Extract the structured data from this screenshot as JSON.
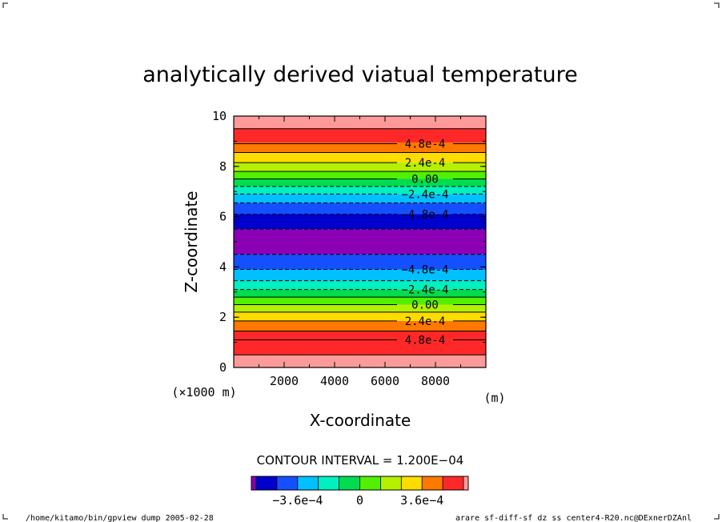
{
  "chart_data": {
    "type": "contour",
    "title": "analytically derived viatual temperature",
    "xlabel": "X-coordinate",
    "ylabel": "Z-coordinate",
    "x_unit": "(m)",
    "y_scale_note": "(×1000 m)",
    "xlim": [
      0,
      10000
    ],
    "ylim": [
      0,
      10
    ],
    "x_ticks": [
      2000,
      4000,
      6000,
      8000
    ],
    "x_tick_labels": [
      "2000",
      "4000",
      "6000",
      "8000"
    ],
    "y_ticks": [
      0,
      2,
      4,
      6,
      8,
      10
    ],
    "y_tick_labels": [
      "0",
      "2",
      "4",
      "6",
      "8",
      "10"
    ],
    "levels": [
      -0.00072,
      -0.0006,
      -0.00048,
      -0.00036,
      -0.00024,
      -0.00012,
      0,
      0.00012,
      0.00024,
      0.00036,
      0.00048,
      0.0006
    ],
    "band_colors": [
      "#8b00b4",
      "#0000cc",
      "#1450ff",
      "#00c0ff",
      "#00f0c0",
      "#00dc50",
      "#50f000",
      "#b4f000",
      "#ffdc00",
      "#ff7800",
      "#ff2828",
      "#ff9a9a"
    ],
    "bands": [
      {
        "z0": 0.0,
        "z1": 0.5,
        "color_index": 11
      },
      {
        "z0": 0.5,
        "z1": 1.45,
        "color_index": 10
      },
      {
        "z0": 1.45,
        "z1": 1.85,
        "color_index": 9
      },
      {
        "z0": 1.85,
        "z1": 2.2,
        "color_index": 8
      },
      {
        "z0": 2.2,
        "z1": 2.5,
        "color_index": 7
      },
      {
        "z0": 2.5,
        "z1": 2.8,
        "color_index": 6
      },
      {
        "z0": 2.8,
        "z1": 3.1,
        "color_index": 5
      },
      {
        "z0": 3.1,
        "z1": 3.45,
        "color_index": 4
      },
      {
        "z0": 3.45,
        "z1": 3.9,
        "color_index": 3
      },
      {
        "z0": 3.9,
        "z1": 4.5,
        "color_index": 2
      },
      {
        "z0": 4.5,
        "z1": 5.5,
        "color_index": 0
      },
      {
        "z0": 5.5,
        "z1": 6.1,
        "color_index": 1
      },
      {
        "z0": 6.1,
        "z1": 6.55,
        "color_index": 2
      },
      {
        "z0": 6.55,
        "z1": 6.9,
        "color_index": 3
      },
      {
        "z0": 6.9,
        "z1": 7.2,
        "color_index": 4
      },
      {
        "z0": 7.2,
        "z1": 7.5,
        "color_index": 5
      },
      {
        "z0": 7.5,
        "z1": 7.8,
        "color_index": 6
      },
      {
        "z0": 7.8,
        "z1": 8.15,
        "color_index": 7
      },
      {
        "z0": 8.15,
        "z1": 8.55,
        "color_index": 8
      },
      {
        "z0": 8.55,
        "z1": 8.95,
        "color_index": 9
      },
      {
        "z0": 8.95,
        "z1": 9.5,
        "color_index": 10
      },
      {
        "z0": 9.5,
        "z1": 10.0,
        "color_index": 11
      }
    ],
    "contour_lines": [
      {
        "z": 1.1,
        "dashed": false,
        "label": "4.8e-4"
      },
      {
        "z": 1.85,
        "dashed": false,
        "label": "2.4e-4"
      },
      {
        "z": 2.5,
        "dashed": false,
        "label": "0.00"
      },
      {
        "z": 3.1,
        "dashed": true,
        "label": "−2.4e-4"
      },
      {
        "z": 3.9,
        "dashed": true,
        "label": "−4.8e-4"
      },
      {
        "z": 6.1,
        "dashed": true,
        "label": "−4.8e-4"
      },
      {
        "z": 6.9,
        "dashed": true,
        "label": "−2.4e-4"
      },
      {
        "z": 7.5,
        "dashed": false,
        "label": "0.00"
      },
      {
        "z": 8.15,
        "dashed": false,
        "label": "2.4e-4"
      },
      {
        "z": 8.9,
        "dashed": false,
        "label": "4.8e-4"
      },
      {
        "z": 0.5,
        "dashed": false,
        "label": ""
      },
      {
        "z": 1.45,
        "dashed": false,
        "label": ""
      },
      {
        "z": 2.2,
        "dashed": false,
        "label": ""
      },
      {
        "z": 2.8,
        "dashed": false,
        "label": ""
      },
      {
        "z": 3.45,
        "dashed": true,
        "label": ""
      },
      {
        "z": 4.5,
        "dashed": true,
        "label": ""
      },
      {
        "z": 5.5,
        "dashed": true,
        "label": ""
      },
      {
        "z": 6.55,
        "dashed": true,
        "label": ""
      },
      {
        "z": 7.2,
        "dashed": true,
        "label": ""
      },
      {
        "z": 7.8,
        "dashed": false,
        "label": ""
      },
      {
        "z": 8.55,
        "dashed": false,
        "label": ""
      },
      {
        "z": 9.5,
        "dashed": false,
        "label": ""
      }
    ],
    "colorbar": {
      "tick_labels": [
        "−3.6e−4",
        "0",
        "3.6e−4"
      ],
      "tick_values": [
        -0.00036,
        0,
        0.00036
      ]
    },
    "contour_interval_text": "CONTOUR INTERVAL = 1.200E−04"
  },
  "footer": {
    "left": "/home/kitamo/bin/gpview_dump  2005-02-28",
    "right": "arare_sf-diff-sf_dz_ss_center4-R20.nc@DExnerDZAnl"
  }
}
